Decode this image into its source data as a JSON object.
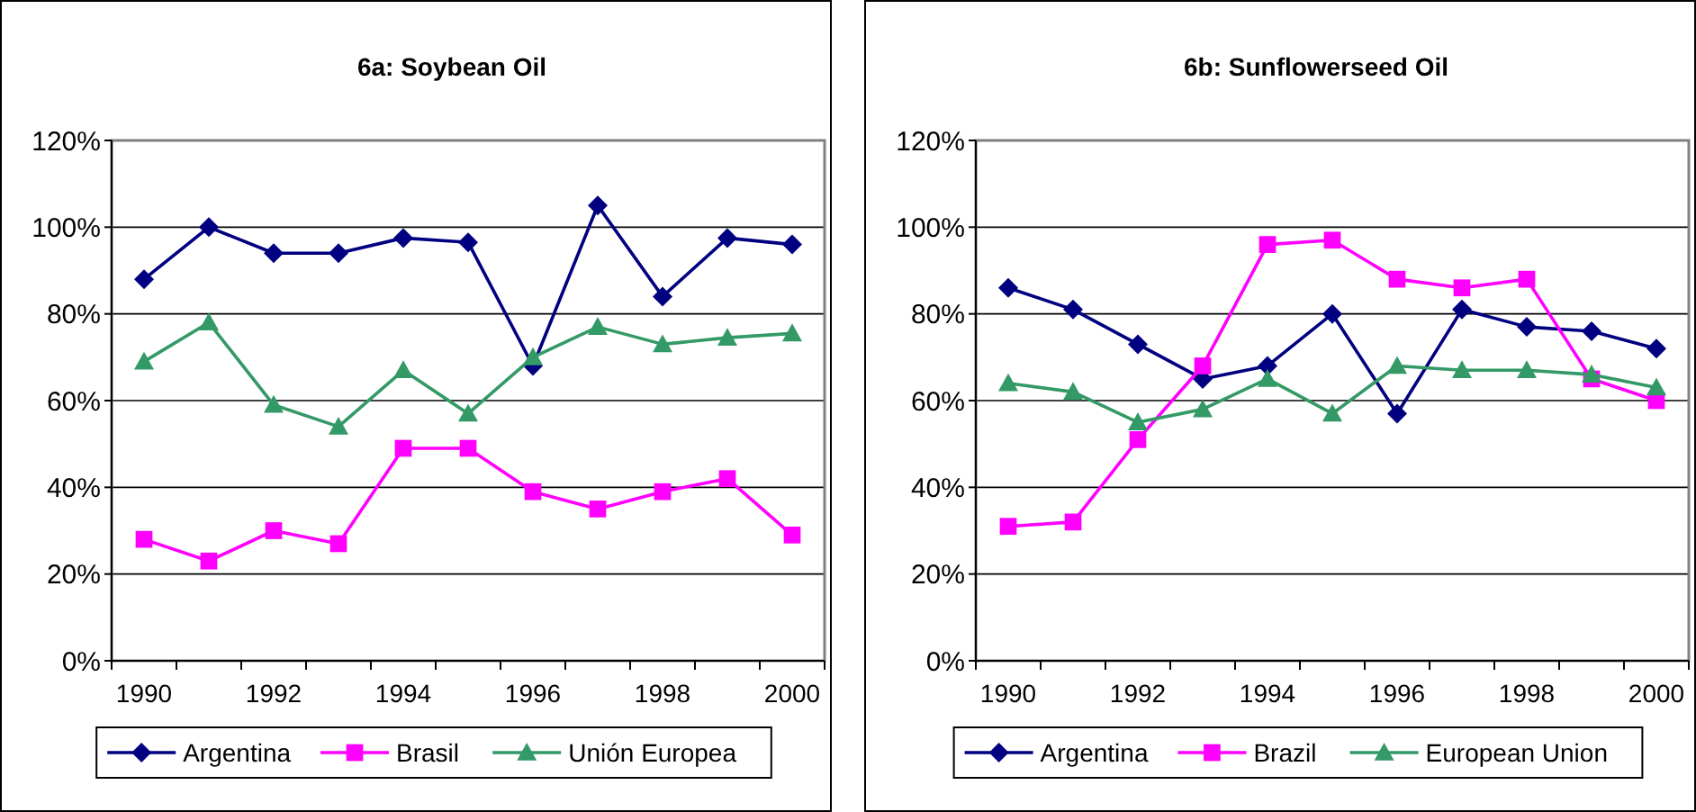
{
  "chart_data": [
    {
      "type": "line",
      "title": "6a: Soybean Oil",
      "categories": [
        "1990",
        null,
        "1992",
        null,
        "1994",
        null,
        "1996",
        null,
        "1998",
        null,
        "2000"
      ],
      "series": [
        {
          "name": "Argentina",
          "color": "#000080",
          "marker": "diamond",
          "values": [
            88,
            100,
            94,
            94,
            97.5,
            96.5,
            68,
            105,
            84,
            97.5,
            96
          ]
        },
        {
          "name": "Brasil",
          "color": "#ff00ff",
          "marker": "square",
          "values": [
            28,
            23,
            30,
            27,
            49,
            49,
            39,
            35,
            39,
            42,
            29
          ]
        },
        {
          "name": "Unión Europea",
          "color": "#339966",
          "marker": "triangle",
          "values": [
            69,
            78,
            59,
            54,
            67,
            57,
            70,
            77,
            73,
            74.5,
            75.5
          ]
        }
      ],
      "ylim": [
        0,
        120
      ],
      "yticks": [
        {
          "value": 0,
          "label": "0%"
        },
        {
          "value": 20,
          "label": "20%"
        },
        {
          "value": 40,
          "label": "40%"
        },
        {
          "value": 60,
          "label": "60%"
        },
        {
          "value": 80,
          "label": "80%"
        },
        {
          "value": 100,
          "label": "100%"
        },
        {
          "value": 120,
          "label": "120%"
        }
      ],
      "grid": "y",
      "legend": "bottom"
    },
    {
      "type": "line",
      "title": "6b: Sunflowerseed Oil",
      "categories": [
        "1990",
        null,
        "1992",
        null,
        "1994",
        null,
        "1996",
        null,
        "1998",
        null,
        "2000"
      ],
      "series": [
        {
          "name": "Argentina",
          "color": "#000080",
          "marker": "diamond",
          "values": [
            86,
            81,
            73,
            65,
            68,
            80,
            57,
            81,
            77,
            76,
            72
          ]
        },
        {
          "name": "Brazil",
          "color": "#ff00ff",
          "marker": "square",
          "values": [
            31,
            32,
            51,
            68,
            96,
            97,
            88,
            86,
            88,
            65,
            60
          ]
        },
        {
          "name": "European Union",
          "color": "#339966",
          "marker": "triangle",
          "values": [
            64,
            62,
            55,
            58,
            65,
            57,
            68,
            67,
            67,
            66,
            63
          ]
        }
      ],
      "ylim": [
        0,
        120
      ],
      "yticks": [
        {
          "value": 0,
          "label": "0%"
        },
        {
          "value": 20,
          "label": "20%"
        },
        {
          "value": 40,
          "label": "40%"
        },
        {
          "value": 60,
          "label": "60%"
        },
        {
          "value": 80,
          "label": "80%"
        },
        {
          "value": 100,
          "label": "100%"
        },
        {
          "value": 120,
          "label": "120%"
        }
      ],
      "grid": "y",
      "legend": "bottom"
    }
  ]
}
